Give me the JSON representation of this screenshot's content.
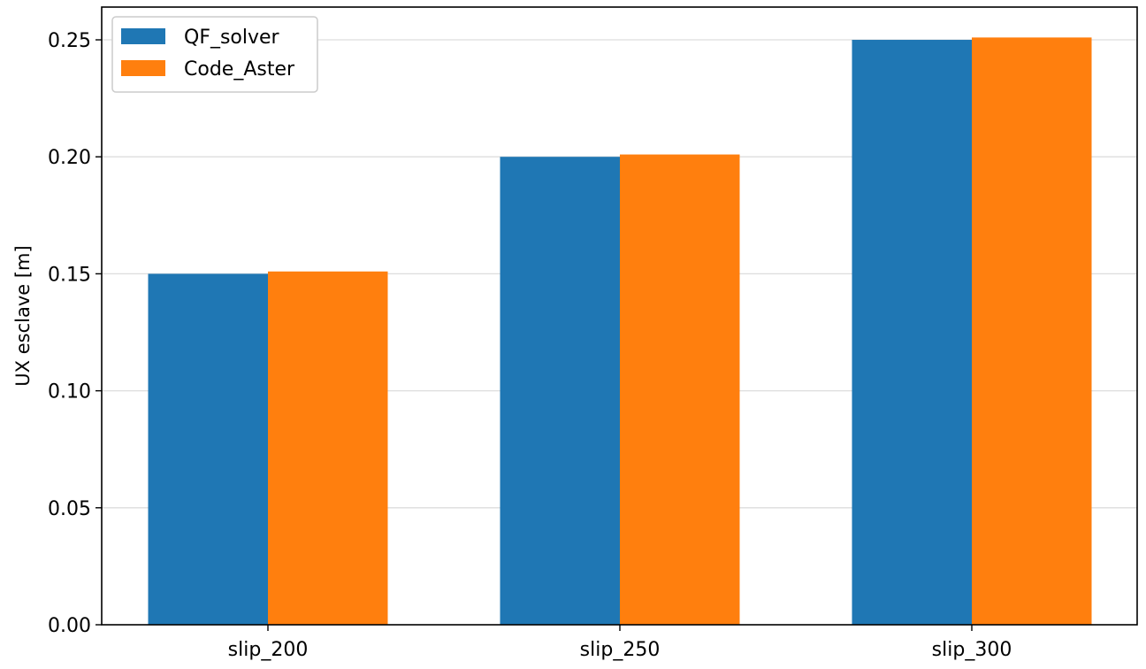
{
  "chart_data": {
    "type": "bar",
    "categories": [
      "slip_200",
      "slip_250",
      "slip_300"
    ],
    "series": [
      {
        "name": "QF_solver",
        "values": [
          0.15,
          0.2,
          0.25
        ],
        "color": "#1f77b4"
      },
      {
        "name": "Code_Aster",
        "values": [
          0.151,
          0.201,
          0.251
        ],
        "color": "#ff7f0e"
      }
    ],
    "xlabel": "",
    "ylabel": "UX esclave [m]",
    "ylim": [
      0,
      0.264
    ],
    "yticks": [
      0.0,
      0.05,
      0.1,
      0.15,
      0.2,
      0.25
    ],
    "ytick_labels": [
      "0.00",
      "0.05",
      "0.10",
      "0.15",
      "0.20",
      "0.25"
    ],
    "grid": "y",
    "legend": "top-left"
  }
}
